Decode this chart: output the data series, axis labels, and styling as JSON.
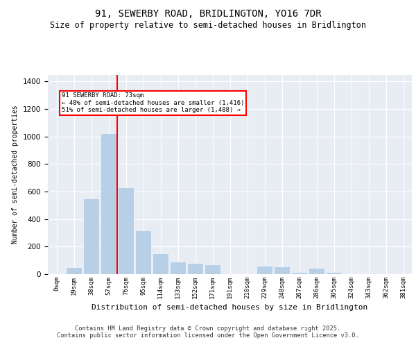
{
  "title": "91, SEWERBY ROAD, BRIDLINGTON, YO16 7DR",
  "subtitle": "Size of property relative to semi-detached houses in Bridlington",
  "xlabel": "Distribution of semi-detached houses by size in Bridlington",
  "ylabel": "Number of semi-detached properties",
  "bar_labels": [
    "0sqm",
    "19sqm",
    "38sqm",
    "57sqm",
    "76sqm",
    "95sqm",
    "114sqm",
    "133sqm",
    "152sqm",
    "171sqm",
    "191sqm",
    "210sqm",
    "229sqm",
    "248sqm",
    "267sqm",
    "286sqm",
    "305sqm",
    "324sqm",
    "343sqm",
    "362sqm",
    "381sqm"
  ],
  "bar_values": [
    0,
    50,
    550,
    1025,
    630,
    320,
    150,
    90,
    80,
    70,
    0,
    0,
    60,
    55,
    15,
    45,
    15,
    0,
    0,
    0,
    0
  ],
  "bar_color": "#b8cfe8",
  "vline_color": "red",
  "vline_pos": 3.5,
  "annotation_text": "91 SEWERBY ROAD: 73sqm\n← 48% of semi-detached houses are smaller (1,416)\n51% of semi-detached houses are larger (1,488) →",
  "ylim": [
    0,
    1450
  ],
  "plot_background": "#e8edf4",
  "footer_line1": "Contains HM Land Registry data © Crown copyright and database right 2025.",
  "footer_line2": "Contains public sector information licensed under the Open Government Licence v3.0.",
  "title_fontsize": 10,
  "subtitle_fontsize": 8.5
}
